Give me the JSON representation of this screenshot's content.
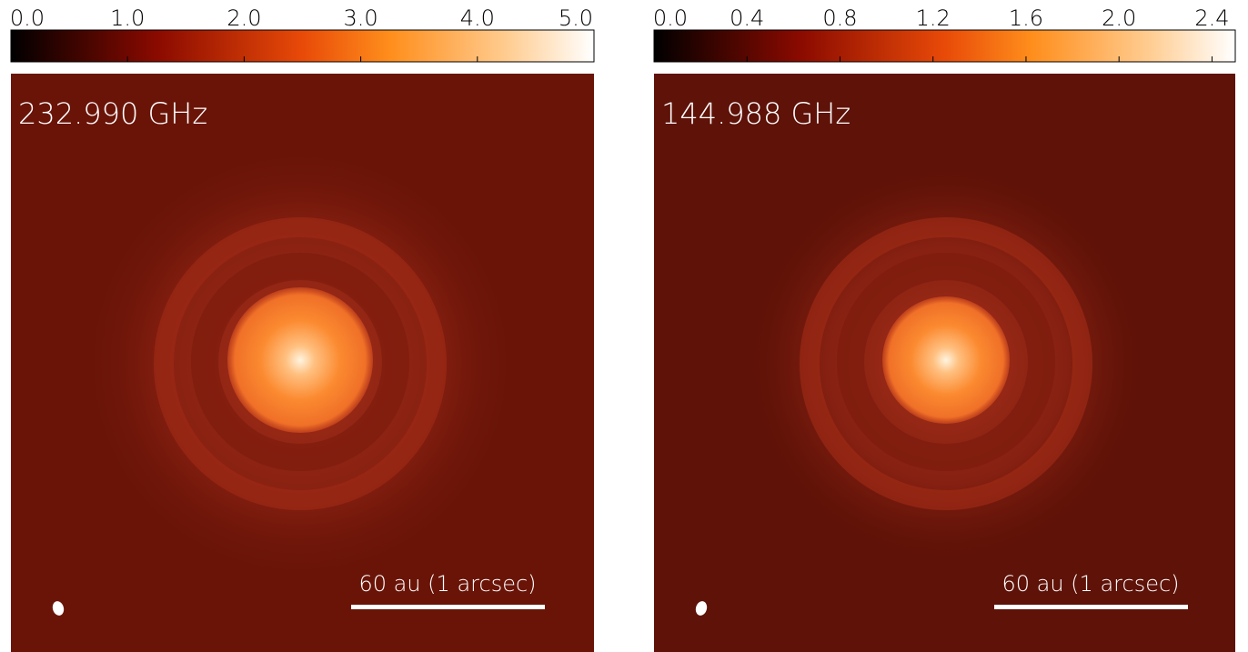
{
  "panels": [
    {
      "label": "232.990 GHz",
      "scalebar": "60 au (1 arcsec)",
      "colorbar": {
        "lim": [
          0,
          5
        ],
        "ticks": [
          {
            "value": 0,
            "label": "0.0"
          },
          {
            "value": 1,
            "label": "1.0"
          },
          {
            "value": 2,
            "label": "2.0"
          },
          {
            "value": 3,
            "label": "3.0"
          },
          {
            "value": 4,
            "label": "4.0"
          },
          {
            "value": 5,
            "label": "5.0"
          }
        ]
      }
    },
    {
      "label": "144.988 GHz",
      "scalebar": "60 au (1 arcsec)",
      "colorbar": {
        "lim": [
          0,
          2.5
        ],
        "ticks": [
          {
            "value": 0,
            "label": "0.0"
          },
          {
            "value": 0.4,
            "label": "0.4"
          },
          {
            "value": 0.8,
            "label": "0.8"
          },
          {
            "value": 1.2,
            "label": "1.2"
          },
          {
            "value": 1.6,
            "label": "1.6"
          },
          {
            "value": 2,
            "label": "2.0"
          },
          {
            "value": 2.4,
            "label": "2.4"
          }
        ]
      }
    }
  ]
}
